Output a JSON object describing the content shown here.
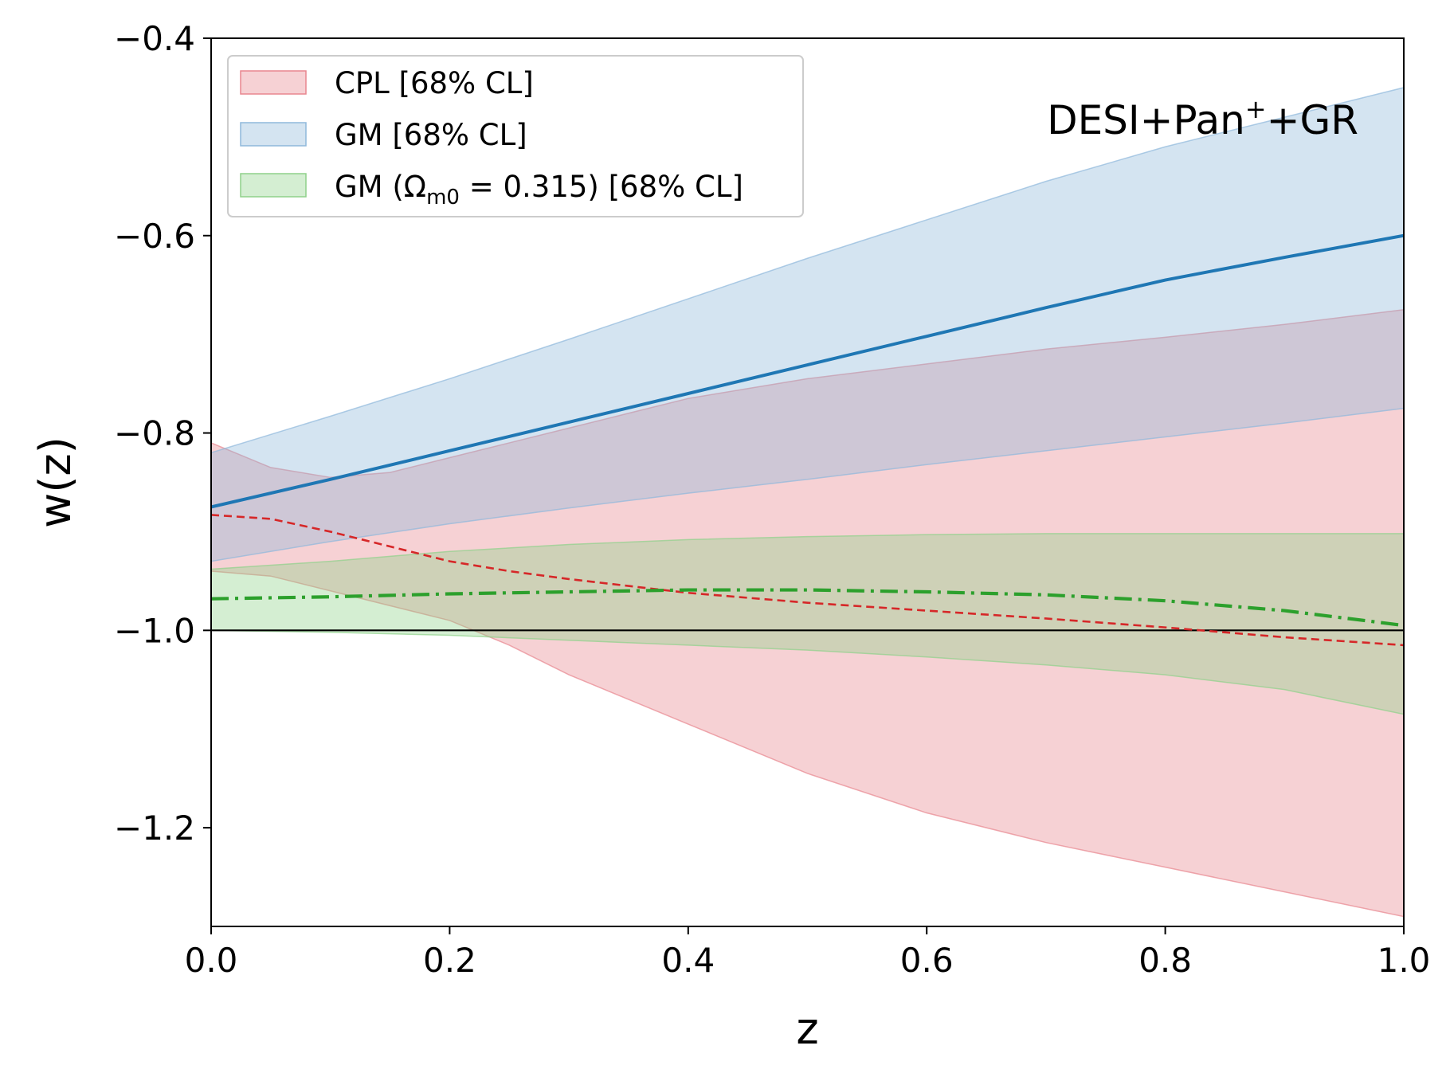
{
  "chart_data": {
    "type": "line",
    "title": "",
    "xlabel": "z",
    "ylabel": "w(z)",
    "xlim": [
      0.0,
      1.0
    ],
    "ylim": [
      -1.3,
      -0.4
    ],
    "grid": false,
    "xticks": [
      0.0,
      0.2,
      0.4,
      0.6,
      0.8,
      1.0
    ],
    "xtick_labels": [
      "0.0",
      "0.2",
      "0.4",
      "0.6",
      "0.8",
      "1.0"
    ],
    "yticks": [
      -1.2,
      -1.0,
      -0.8,
      -0.6,
      -0.4
    ],
    "ytick_labels": [
      "−1.2",
      "−1.0",
      "−0.8",
      "−0.6",
      "−0.4"
    ],
    "annotation": {
      "text": "DESI+Pan",
      "sup": "+",
      "suffix": "+GR",
      "location": "top-right"
    },
    "legend": {
      "location": "top-left",
      "entries": [
        {
          "series": "cpl",
          "label": "CPL  [68% CL]"
        },
        {
          "series": "gm",
          "label": "GM  [68% CL]"
        },
        {
          "series": "gm_fixed",
          "label_pre": "GM (Ω",
          "label_sub": "m0",
          "label_post": " = 0.315) [68% CL]"
        }
      ]
    },
    "reference_line": {
      "y": -1.0,
      "color": "#000000"
    },
    "series": [
      {
        "name": "cpl",
        "band_color": "#e8868f",
        "line_color": "#d62728",
        "line_style": "dashed",
        "x": [
          0.0,
          0.05,
          0.1,
          0.15,
          0.2,
          0.25,
          0.3,
          0.35,
          0.4,
          0.5,
          0.6,
          0.7,
          0.8,
          0.9,
          1.0
        ],
        "upper": [
          -0.81,
          -0.835,
          -0.845,
          -0.84,
          -0.825,
          -0.81,
          -0.795,
          -0.78,
          -0.765,
          -0.745,
          -0.73,
          -0.715,
          -0.703,
          -0.69,
          -0.675
        ],
        "lower": [
          -0.94,
          -0.945,
          -0.96,
          -0.975,
          -0.99,
          -1.015,
          -1.045,
          -1.07,
          -1.095,
          -1.145,
          -1.185,
          -1.215,
          -1.24,
          -1.265,
          -1.29
        ],
        "center": [
          -0.883,
          -0.887,
          -0.9,
          -0.915,
          -0.93,
          -0.94,
          -0.948,
          -0.955,
          -0.962,
          -0.972,
          -0.98,
          -0.988,
          -0.997,
          -1.007,
          -1.015
        ]
      },
      {
        "name": "gm",
        "band_color": "#8fb8db",
        "line_color": "#1f77b4",
        "line_style": "solid",
        "x": [
          0.0,
          0.1,
          0.2,
          0.3,
          0.4,
          0.5,
          0.6,
          0.7,
          0.8,
          0.9,
          1.0
        ],
        "upper": [
          -0.82,
          -0.783,
          -0.745,
          -0.705,
          -0.664,
          -0.623,
          -0.584,
          -0.545,
          -0.51,
          -0.48,
          -0.45
        ],
        "lower": [
          -0.93,
          -0.91,
          -0.892,
          -0.876,
          -0.861,
          -0.847,
          -0.832,
          -0.818,
          -0.804,
          -0.79,
          -0.775
        ],
        "center": [
          -0.875,
          -0.847,
          -0.818,
          -0.789,
          -0.76,
          -0.731,
          -0.702,
          -0.673,
          -0.645,
          -0.622,
          -0.6
        ]
      },
      {
        "name": "gm_fixed",
        "band_color": "#8fd18a",
        "line_color": "#2ca02c",
        "line_style": "dashdot",
        "x": [
          0.0,
          0.1,
          0.2,
          0.3,
          0.4,
          0.5,
          0.6,
          0.7,
          0.8,
          0.9,
          1.0
        ],
        "upper": [
          -0.938,
          -0.93,
          -0.92,
          -0.913,
          -0.908,
          -0.905,
          -0.903,
          -0.902,
          -0.902,
          -0.902,
          -0.902
        ],
        "lower": [
          -1.0,
          -1.002,
          -1.005,
          -1.01,
          -1.015,
          -1.02,
          -1.027,
          -1.035,
          -1.045,
          -1.06,
          -1.085
        ],
        "center": [
          -0.968,
          -0.966,
          -0.963,
          -0.961,
          -0.959,
          -0.959,
          -0.961,
          -0.964,
          -0.97,
          -0.98,
          -0.995
        ]
      }
    ]
  }
}
